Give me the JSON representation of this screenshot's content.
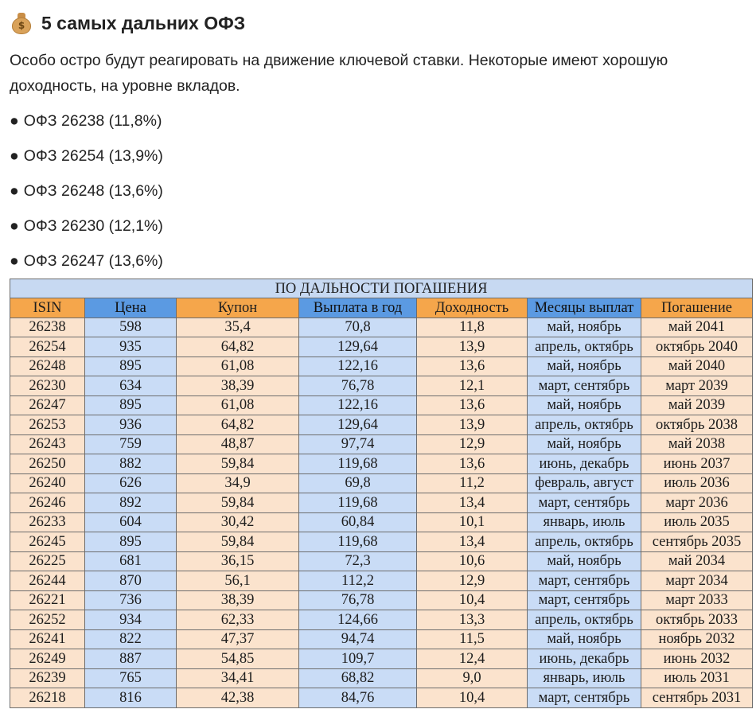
{
  "header": {
    "icon": "money-bag-icon",
    "icon_symbol": "$",
    "title": "5 самых дальних ОФЗ"
  },
  "intro": "Особо остро будут реагировать на движение ключевой ставки. Некоторые имеют хорошую доходность, на уровне вкладов.",
  "bullets": [
    "ОФЗ 26238 (11,8%)",
    "ОФЗ 26254 (13,9%)",
    "ОФЗ 26248 (13,6%)",
    "ОФЗ 26230 (12,1%)",
    "ОФЗ 26247 (13,6%)"
  ],
  "bullet_symbol": "●",
  "table": {
    "caption": "ПО ДАЛЬНОСТИ ПОГАШЕНИЯ",
    "headers": [
      "ISIN",
      "Цена",
      "Купон",
      "Выплата в год",
      "Доходность",
      "Месяцы выплат",
      "Погашение"
    ],
    "rows": [
      [
        "26238",
        "598",
        "35,4",
        "70,8",
        "11,8",
        "май, ноябрь",
        "май 2041"
      ],
      [
        "26254",
        "935",
        "64,82",
        "129,64",
        "13,9",
        "апрель, октябрь",
        "октябрь 2040"
      ],
      [
        "26248",
        "895",
        "61,08",
        "122,16",
        "13,6",
        "май, ноябрь",
        "май 2040"
      ],
      [
        "26230",
        "634",
        "38,39",
        "76,78",
        "12,1",
        "март, сентябрь",
        "март 2039"
      ],
      [
        "26247",
        "895",
        "61,08",
        "122,16",
        "13,6",
        "май, ноябрь",
        "май 2039"
      ],
      [
        "26253",
        "936",
        "64,82",
        "129,64",
        "13,9",
        "апрель, октябрь",
        "октябрь 2038"
      ],
      [
        "26243",
        "759",
        "48,87",
        "97,74",
        "12,9",
        "май, ноябрь",
        "май 2038"
      ],
      [
        "26250",
        "882",
        "59,84",
        "119,68",
        "13,6",
        "июнь, декабрь",
        "июнь 2037"
      ],
      [
        "26240",
        "626",
        "34,9",
        "69,8",
        "11,2",
        "февраль, август",
        "июль 2036"
      ],
      [
        "26246",
        "892",
        "59,84",
        "119,68",
        "13,4",
        "март, сентябрь",
        "март 2036"
      ],
      [
        "26233",
        "604",
        "30,42",
        "60,84",
        "10,1",
        "январь, июль",
        "июль 2035"
      ],
      [
        "26245",
        "895",
        "59,84",
        "119,68",
        "13,4",
        "апрель, октябрь",
        "сентябрь 2035"
      ],
      [
        "26225",
        "681",
        "36,15",
        "72,3",
        "10,6",
        "май, ноябрь",
        "май 2034"
      ],
      [
        "26244",
        "870",
        "56,1",
        "112,2",
        "12,9",
        "март, сентябрь",
        "март 2034"
      ],
      [
        "26221",
        "736",
        "38,39",
        "76,78",
        "10,4",
        "март, сентябрь",
        "март 2033"
      ],
      [
        "26252",
        "934",
        "62,33",
        "124,66",
        "13,3",
        "апрель, октябрь",
        "октябрь 2033"
      ],
      [
        "26241",
        "822",
        "47,37",
        "94,74",
        "11,5",
        "май, ноябрь",
        "ноябрь 2032"
      ],
      [
        "26249",
        "887",
        "54,85",
        "109,7",
        "12,4",
        "июнь, декабрь",
        "июнь 2032"
      ],
      [
        "26239",
        "765",
        "34,41",
        "68,82",
        "9,0",
        "январь, июль",
        "июль 2031"
      ],
      [
        "26218",
        "816",
        "42,38",
        "84,76",
        "10,4",
        "март, сентябрь",
        "сентябрь 2031"
      ]
    ],
    "header_colors": [
      "#f5a64b",
      "#5b9ae2",
      "#f5a64b",
      "#5b9ae2",
      "#f5a64b",
      "#5b9ae2",
      "#f5a64b"
    ],
    "column_fill": [
      "peach",
      "lblue",
      "peach",
      "lblue",
      "peach",
      "lblue",
      "peach"
    ],
    "colors": {
      "caption_bg": "#c7d9f2",
      "peach": "#fbe3cd",
      "light_blue": "#c9dcf6"
    }
  }
}
